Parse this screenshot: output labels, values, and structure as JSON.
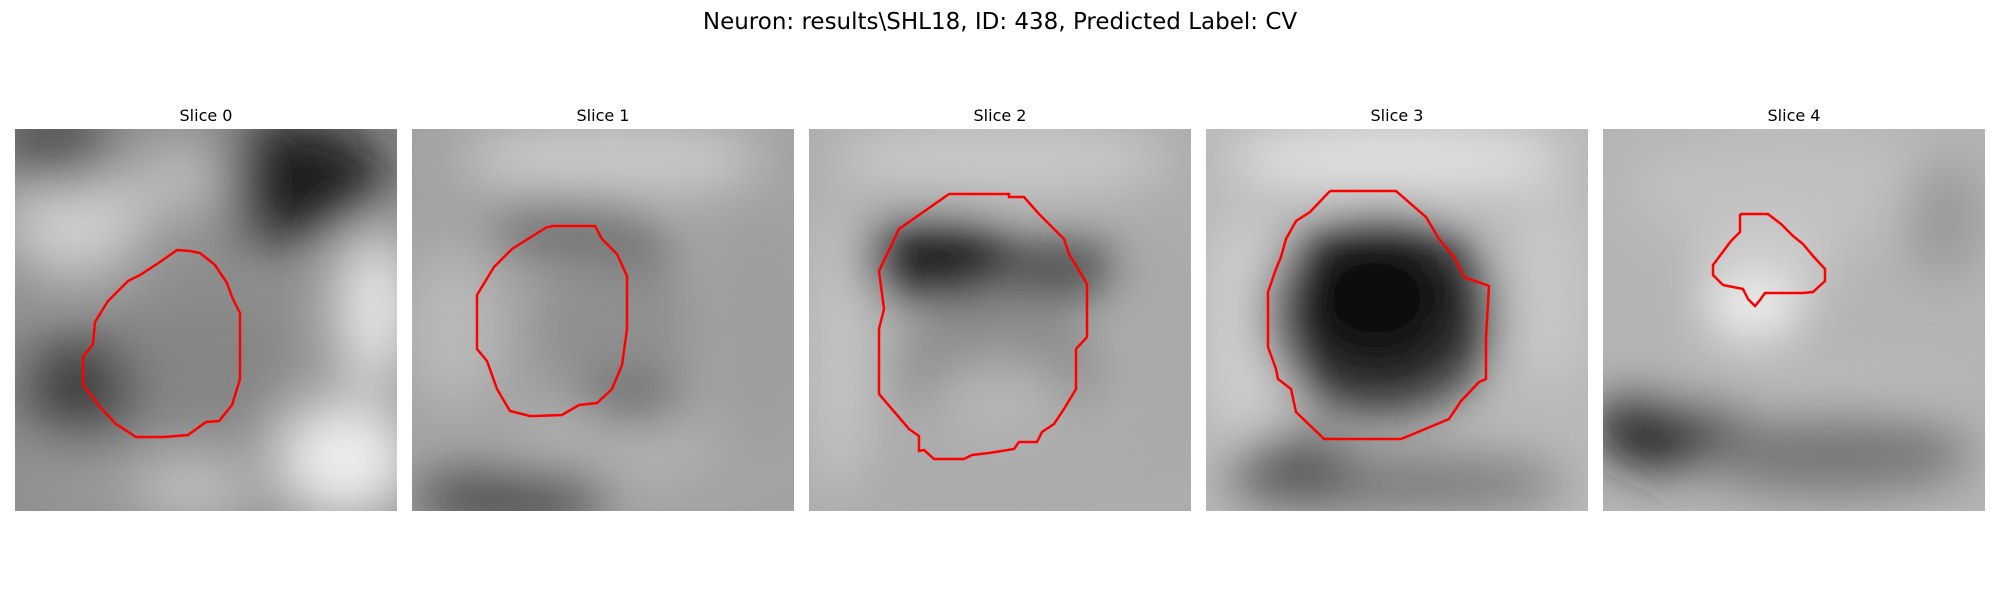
{
  "figure": {
    "title": "Neuron: results\\SHL18, ID: 438, Predicted Label: CV",
    "contour_color": "#ff0000"
  },
  "slices": [
    {
      "title": "Slice 0"
    },
    {
      "title": "Slice 1"
    },
    {
      "title": "Slice 2"
    },
    {
      "title": "Slice 3"
    },
    {
      "title": "Slice 4"
    }
  ]
}
